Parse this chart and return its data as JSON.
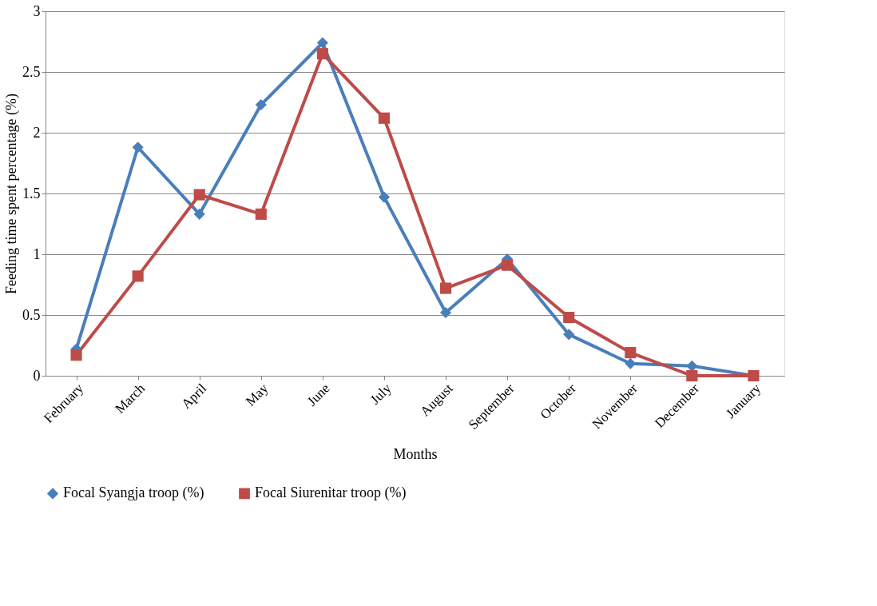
{
  "chart_data": {
    "type": "line",
    "xlabel": "Months",
    "ylabel": "Feeding time spent percentage (%)",
    "categories": [
      "February",
      "March",
      "April",
      "May",
      "June",
      "July",
      "August",
      "September",
      "October",
      "November",
      "December",
      "January"
    ],
    "series": [
      {
        "name": "Focal Syangja troop (%)",
        "color": "#4a7ebb",
        "marker": "diamond",
        "values": [
          0.22,
          1.88,
          1.33,
          2.23,
          2.74,
          1.47,
          0.52,
          0.96,
          0.34,
          0.1,
          0.08,
          0
        ]
      },
      {
        "name": "Focal Siurenitar troop (%)",
        "color": "#be4b48",
        "marker": "square",
        "values": [
          0.17,
          0.82,
          1.49,
          1.33,
          2.65,
          2.12,
          0.72,
          0.91,
          0.48,
          0.19,
          0,
          0
        ]
      }
    ],
    "ylim": [
      0,
      3
    ],
    "yticks": [
      0,
      0.5,
      1,
      1.5,
      2,
      2.5,
      3
    ],
    "grid": "y",
    "legend": "bottom",
    "line_style": "solid"
  }
}
